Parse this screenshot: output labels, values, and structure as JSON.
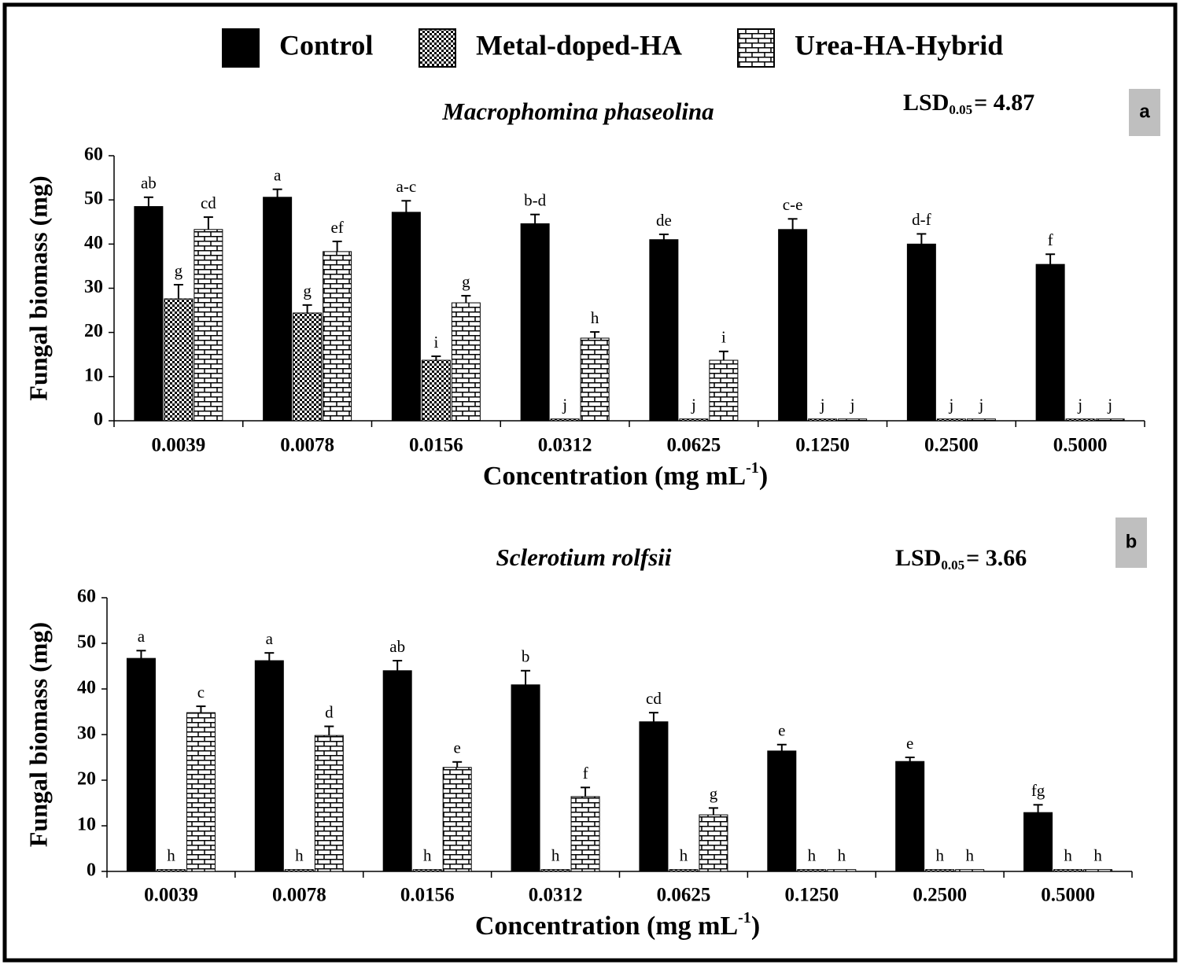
{
  "legend_position": "top",
  "chart_data": [
    {
      "type": "bar",
      "panel": "a",
      "title": "Macrophomina phaseolina",
      "lsd": {
        "prefix": "LSD",
        "subscript": "0.05",
        "text": "= 4.87"
      },
      "x_label": {
        "text": "Concentration (mg mL",
        "superscript": "-1",
        "suffix": ")"
      },
      "y_label": "Fungal biomass (mg)",
      "categories": [
        "0.0039",
        "0.0078",
        "0.0156",
        "0.0312",
        "0.0625",
        "0.1250",
        "0.2500",
        "0.5000"
      ],
      "ylim": [
        0,
        60
      ],
      "yticks": [
        0,
        10,
        20,
        30,
        40,
        50,
        60
      ],
      "series": [
        {
          "name": "Control",
          "color": "#000000",
          "pattern": "solid",
          "values": [
            48.5,
            50.6,
            47.2,
            44.6,
            41.0,
            43.3,
            40.0,
            35.4
          ],
          "errors": [
            2.1,
            1.8,
            2.6,
            2.1,
            1.2,
            2.4,
            2.3,
            2.3
          ],
          "letters": [
            "ab",
            "a",
            "a-c",
            "b-d",
            "de",
            "c-e",
            "d-f",
            "f"
          ]
        },
        {
          "name": "Metal-doped-HA",
          "color": "#000000",
          "pattern": "checker",
          "values": [
            27.6,
            24.4,
            13.7,
            0.4,
            0.4,
            0.4,
            0.4,
            0.4
          ],
          "errors": [
            3.2,
            1.8,
            0.9,
            null,
            null,
            null,
            null,
            null
          ],
          "letters": [
            "g",
            "g",
            "i",
            "j",
            "j",
            "j",
            "j",
            "j"
          ]
        },
        {
          "name": "Urea-HA-Hybrid",
          "color": "#000000",
          "pattern": "brick",
          "values": [
            43.3,
            38.3,
            26.7,
            18.7,
            13.7,
            0.4,
            0.4,
            0.4
          ],
          "errors": [
            2.8,
            2.3,
            1.6,
            1.4,
            2.0,
            null,
            null,
            null
          ],
          "letters": [
            "cd",
            "ef",
            "g",
            "h",
            "i",
            "j",
            "j",
            "j"
          ]
        }
      ]
    },
    {
      "type": "bar",
      "panel": "b",
      "title": "Sclerotium rolfsii",
      "lsd": {
        "prefix": "LSD",
        "subscript": "0.05",
        "text": "= 3.66"
      },
      "x_label": {
        "text": "Concentration (mg mL",
        "superscript": "-1",
        "suffix": ")"
      },
      "y_label": "Fungal biomass (mg)",
      "categories": [
        "0.0039",
        "0.0078",
        "0.0156",
        "0.0312",
        "0.0625",
        "0.1250",
        "0.2500",
        "0.5000"
      ],
      "ylim": [
        0,
        60
      ],
      "yticks": [
        0,
        10,
        20,
        30,
        40,
        50,
        60
      ],
      "series": [
        {
          "color": "#000000",
          "pattern": "solid",
          "values": [
            46.7,
            46.2,
            44.0,
            40.9,
            32.8,
            26.4,
            24.1,
            12.9
          ],
          "errors": [
            1.7,
            1.7,
            2.2,
            3.1,
            2.0,
            1.4,
            0.9,
            1.7
          ],
          "letters": [
            "a",
            "a",
            "ab",
            "b",
            "cd",
            "e",
            "e",
            "fg"
          ]
        },
        {
          "color": "#000000",
          "pattern": "checker",
          "values": [
            0.4,
            0.4,
            0.4,
            0.4,
            0.4,
            0.4,
            0.4,
            0.4
          ],
          "errors": [
            null,
            null,
            null,
            null,
            null,
            null,
            null,
            null
          ],
          "letters": [
            "h",
            "h",
            "h",
            "h",
            "h",
            "h",
            "h",
            "h"
          ]
        },
        {
          "color": "#000000",
          "pattern": "brick",
          "values": [
            34.8,
            29.8,
            22.8,
            16.4,
            12.4,
            0.4,
            0.4,
            0.4
          ],
          "errors": [
            1.4,
            2.0,
            1.2,
            2.0,
            1.5,
            null,
            null,
            null
          ],
          "letters": [
            "c",
            "d",
            "e",
            "f",
            "g",
            "h",
            "h",
            "h"
          ]
        }
      ]
    }
  ]
}
